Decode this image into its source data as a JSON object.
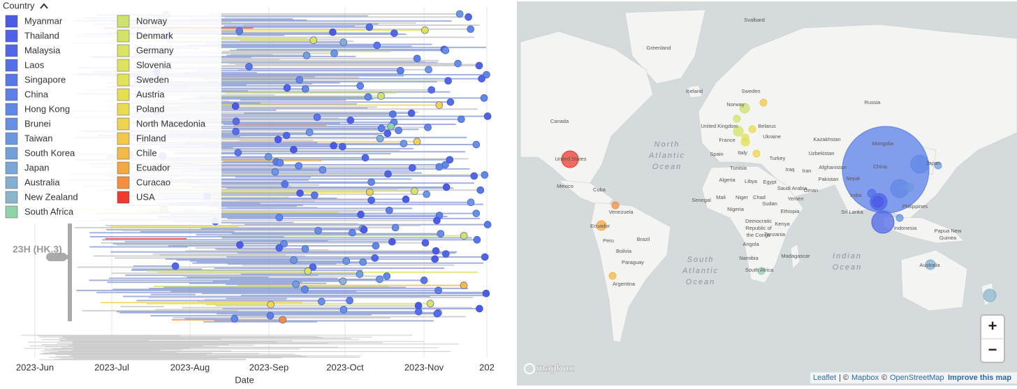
{
  "tree": {
    "legend_title": "Country",
    "legend": [
      {
        "name": "Myanmar",
        "color": "#4c5be6"
      },
      {
        "name": "Thailand",
        "color": "#4e63e7"
      },
      {
        "name": "Malaysia",
        "color": "#5068e8"
      },
      {
        "name": "Laos",
        "color": "#5470e8"
      },
      {
        "name": "Singapore",
        "color": "#5878e8"
      },
      {
        "name": "China",
        "color": "#5c80e8"
      },
      {
        "name": "Hong Kong",
        "color": "#6288e6"
      },
      {
        "name": "Brunei",
        "color": "#6790e4"
      },
      {
        "name": "Taiwan",
        "color": "#6c98e1"
      },
      {
        "name": "South Korea",
        "color": "#73a0dd"
      },
      {
        "name": "Japan",
        "color": "#7aa7d8"
      },
      {
        "name": "Australia",
        "color": "#82afd2"
      },
      {
        "name": "New Zealand",
        "color": "#8ab5cb"
      },
      {
        "name": "South Africa",
        "color": "#8fd4a8"
      },
      {
        "name": "Norway",
        "color": "#cde26f"
      },
      {
        "name": "Denmark",
        "color": "#d2e368"
      },
      {
        "name": "Germany",
        "color": "#d8e462"
      },
      {
        "name": "Slovenia",
        "color": "#dee35d"
      },
      {
        "name": "Sweden",
        "color": "#e2e259"
      },
      {
        "name": "Austria",
        "color": "#e6df55"
      },
      {
        "name": "Poland",
        "color": "#ebdb52"
      },
      {
        "name": "North Macedonia",
        "color": "#efd44f"
      },
      {
        "name": "Finland",
        "color": "#f2c84b"
      },
      {
        "name": "Chile",
        "color": "#f4ba48"
      },
      {
        "name": "Ecuador",
        "color": "#f4a745"
      },
      {
        "name": "Curacao",
        "color": "#f29040"
      },
      {
        "name": "USA",
        "color": "#ee3b2e"
      }
    ],
    "clade_label": "23H (HK.3)",
    "x_ticks": [
      "2023-Jun",
      "2023-Jul",
      "2023-Aug",
      "2023-Sep",
      "2023-Oct",
      "2023-Nov",
      "202"
    ],
    "x_axis_label": "Date"
  },
  "map": {
    "labels": [
      "Svalbard",
      "Greenland",
      "Iceland",
      "Sweden",
      "Norway",
      "Russia",
      "Canada",
      "United Kingdom",
      "Belarus",
      "Kazakhstan",
      "Mongolia",
      "France",
      "Ukraine",
      "Spain",
      "Italy",
      "Turkey",
      "Uzbekistan",
      "United States",
      "China",
      "Japan",
      "Tunisia",
      "Iraq",
      "Iran",
      "Afghanistan",
      "Pakistan",
      "Nepal",
      "Mexico",
      "Cuba",
      "Algeria",
      "Libya",
      "Egypt",
      "Saudi Arabia",
      "Oman",
      "India",
      "Philippines",
      "Venezuela",
      "Senegal",
      "Mali",
      "Niger",
      "Chad",
      "Sudan",
      "Yemen",
      "Nigeria",
      "Ethiopia",
      "Sri Lanka",
      "Ecuador",
      "Kenya",
      "Indonesia",
      "Peru",
      "Brazil",
      "Angola",
      "Tanzania",
      "Bolivia",
      "Madagascar",
      "Namibia",
      "Paraguay",
      "South Africa",
      "Australia",
      "Argentina"
    ],
    "multiline_labels": [
      {
        "lines": [
          "North",
          "Atlantic",
          "Ocean"
        ]
      },
      {
        "lines": [
          "South",
          "Atlantic",
          "Ocean"
        ]
      },
      {
        "lines": [
          "Indian",
          "Ocean"
        ]
      },
      {
        "lines": [
          "Democratic",
          "Republic of",
          "the Congo"
        ]
      },
      {
        "lines": [
          "Papua New",
          "Guinea"
        ]
      }
    ],
    "zoom_in": "+",
    "zoom_out": "−",
    "logo": "mapbox",
    "attribution": [
      "Leaflet",
      "| ©",
      "Mapbox",
      "©",
      "OpenStreetMap",
      "Improve this map"
    ]
  }
}
